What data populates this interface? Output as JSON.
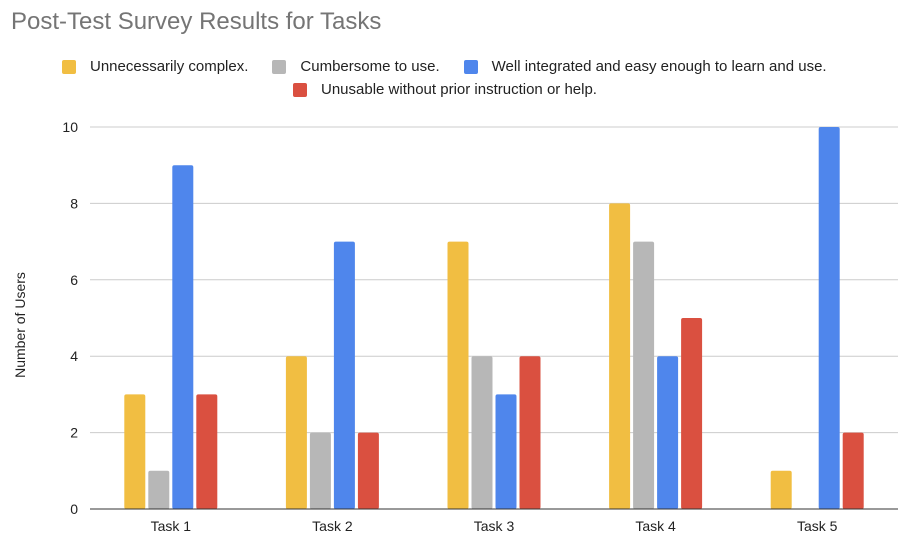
{
  "chart_data": {
    "type": "bar",
    "title": "Post-Test Survey Results for Tasks",
    "xlabel": "",
    "ylabel": "Number of Users",
    "ylim": [
      0,
      10
    ],
    "yticks": [
      0,
      2,
      4,
      6,
      8,
      10
    ],
    "grid": true,
    "legend_position": "top",
    "categories": [
      "Task 1",
      "Task 2",
      "Task 3",
      "Task 4",
      "Task 5"
    ],
    "series": [
      {
        "name": "Unnecessarily complex.",
        "color": "#f1be42",
        "values": [
          3,
          4,
          7,
          8,
          1
        ]
      },
      {
        "name": "Cumbersome to use.",
        "color": "#b7b7b7",
        "values": [
          1,
          2,
          4,
          7,
          0
        ]
      },
      {
        "name": "Well integrated and easy enough to learn and use.",
        "color": "#4f86ec",
        "values": [
          9,
          7,
          3,
          4,
          10
        ]
      },
      {
        "name": "Unusable without prior instruction or help.",
        "color": "#da5040",
        "values": [
          3,
          2,
          4,
          5,
          2
        ]
      }
    ]
  }
}
